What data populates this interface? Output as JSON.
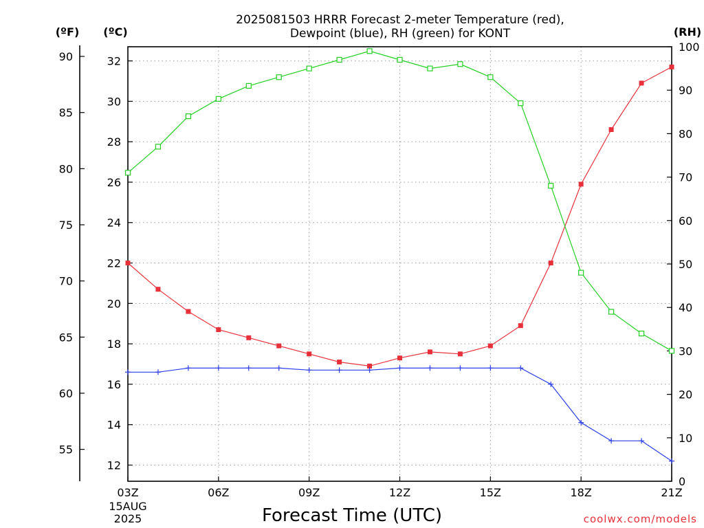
{
  "chart_data": {
    "type": "line",
    "title": "2025081503 HRRR Forecast 2-meter Temperature (red),",
    "subtitle": "Dewpoint (blue), RH (green) for KONT",
    "xlabel": "Forecast Time (UTC)",
    "credit": "coolwx.com/models",
    "unit_labels": {
      "fahrenheit": "(ºF)",
      "celsius": "(ºC)",
      "rh": "(RH)"
    },
    "x_ticks": [
      "03Z",
      "06Z",
      "09Z",
      "12Z",
      "15Z",
      "18Z",
      "21Z"
    ],
    "x_tick_hours": [
      3,
      6,
      9,
      12,
      15,
      18,
      21
    ],
    "x_date_lines": [
      "15AUG",
      "2025"
    ],
    "xlim": [
      3,
      21
    ],
    "celsius_ticks": [
      12,
      14,
      16,
      18,
      20,
      22,
      24,
      26,
      28,
      30,
      32
    ],
    "celsius_lim": [
      11.2,
      32.7
    ],
    "fahrenheit_ticks": [
      55,
      60,
      65,
      70,
      75,
      80,
      85,
      90
    ],
    "rh_ticks": [
      0,
      10,
      20,
      30,
      40,
      50,
      60,
      70,
      80,
      90,
      100
    ],
    "rh_lim": [
      0,
      100
    ],
    "x": [
      3,
      4,
      5,
      6,
      7,
      8,
      9,
      10,
      11,
      12,
      13,
      14,
      15,
      16,
      17,
      18,
      19,
      20,
      21
    ],
    "grid": true,
    "series": [
      {
        "key": "temperature",
        "axis": "celsius",
        "color": "#e8303a",
        "marker": "filled-square",
        "values": [
          22.0,
          20.7,
          19.6,
          18.7,
          18.3,
          17.9,
          17.5,
          17.1,
          16.9,
          17.3,
          17.6,
          17.5,
          17.9,
          18.9,
          22.0,
          25.9,
          28.6,
          30.9,
          31.7
        ]
      },
      {
        "key": "dewpoint",
        "axis": "celsius",
        "color": "#2a3fe8",
        "marker": "plus",
        "values": [
          16.6,
          16.6,
          16.8,
          16.8,
          16.8,
          16.8,
          16.7,
          16.7,
          16.7,
          16.8,
          16.8,
          16.8,
          16.8,
          16.8,
          16.0,
          14.1,
          13.2,
          13.2,
          12.2
        ]
      },
      {
        "key": "rh",
        "axis": "rh",
        "color": "#22d022",
        "marker": "open-square",
        "values": [
          71,
          77,
          84,
          88,
          91,
          93,
          95,
          97,
          99,
          97,
          95,
          96,
          93,
          87,
          68,
          48,
          39,
          34,
          30
        ]
      }
    ]
  }
}
